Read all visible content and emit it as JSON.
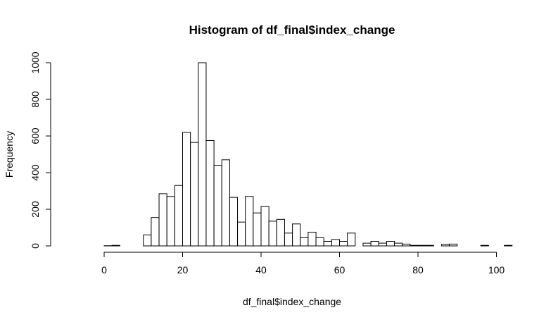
{
  "chart_data": {
    "type": "bar",
    "title": "Histogram of df_final$index_change",
    "xlabel": "df_final$index_change",
    "ylabel": "Frequency",
    "xlim": [
      -8,
      104
    ],
    "ylim": [
      0,
      1000
    ],
    "x_ticks": [
      "0",
      "20",
      "40",
      "60",
      "80",
      "100"
    ],
    "y_ticks": [
      "0",
      "200",
      "400",
      "600",
      "800",
      "1000"
    ],
    "bin_width": 2,
    "bin_start": -8,
    "values": [
      0,
      0,
      0,
      0,
      1,
      3,
      0,
      0,
      0,
      60,
      155,
      285,
      270,
      330,
      620,
      565,
      1000,
      575,
      440,
      470,
      265,
      130,
      270,
      180,
      215,
      135,
      145,
      70,
      120,
      45,
      75,
      45,
      25,
      35,
      25,
      70,
      0,
      15,
      25,
      15,
      25,
      15,
      10,
      3,
      3,
      3,
      0,
      8,
      10,
      0,
      0,
      0,
      3,
      0,
      0,
      3
    ]
  }
}
